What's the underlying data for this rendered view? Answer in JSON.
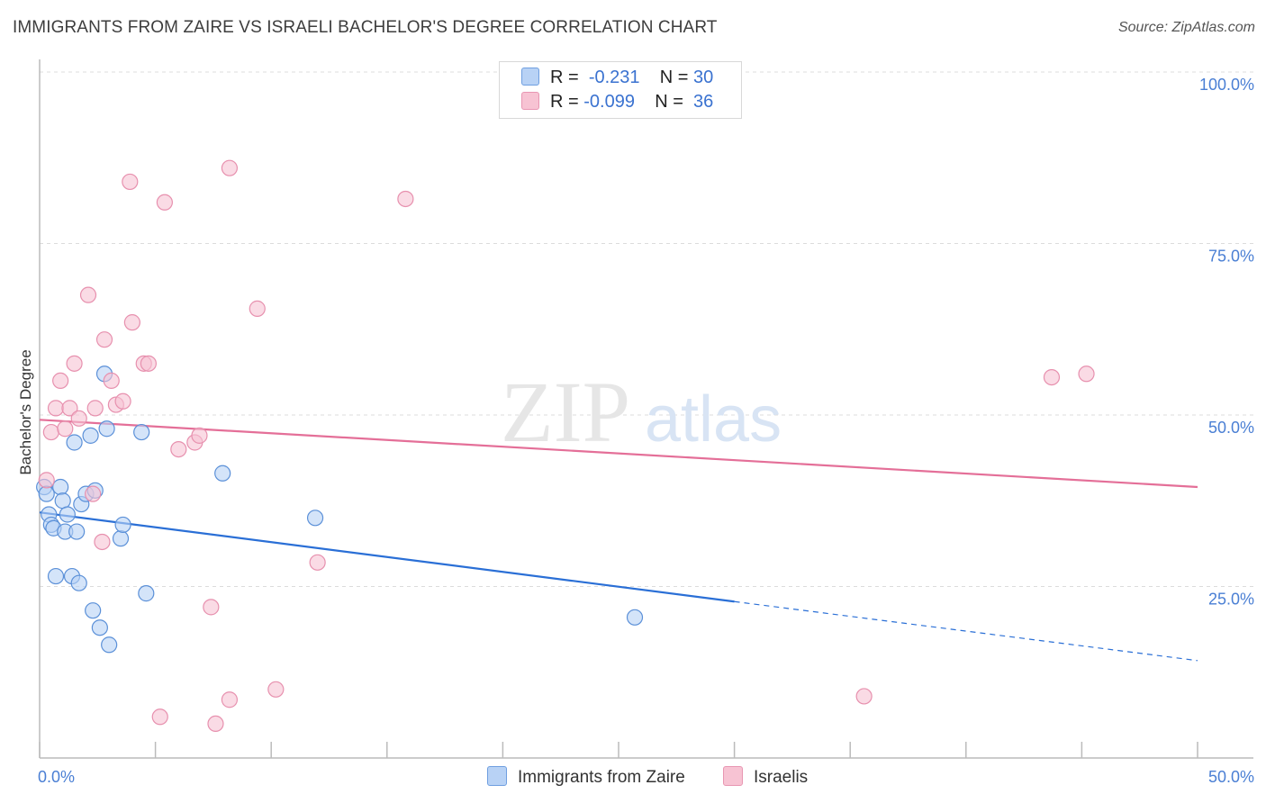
{
  "title": "IMMIGRANTS FROM ZAIRE VS ISRAELI BACHELOR'S DEGREE CORRELATION CHART",
  "source": "Source: ZipAtlas.com",
  "watermark": {
    "zip": "ZIP",
    "atlas": "atlas"
  },
  "legend": {
    "series1": {
      "r_label": "R =",
      "r_value": "-0.231",
      "n_label": "N =",
      "n_value": "30"
    },
    "series2": {
      "r_label": "R =",
      "r_value": "-0.099",
      "n_label": "N =",
      "n_value": "36"
    }
  },
  "bottom_legend": {
    "series1": "Immigrants from Zaire",
    "series2": "Israelis"
  },
  "colors": {
    "blue_fill": "#b8d2f5",
    "blue_stroke": "#5b90d8",
    "blue_line": "#2a6fd6",
    "pink_fill": "#f7c3d3",
    "pink_stroke": "#e790ae",
    "pink_line": "#e46f98",
    "grid": "#dcdcdc",
    "axis_text": "#4a7fd4"
  },
  "chart_data": {
    "type": "scatter",
    "title": "IMMIGRANTS FROM ZAIRE VS ISRAELI BACHELOR'S DEGREE CORRELATION CHART",
    "xlabel": "",
    "ylabel": "Bachelor's Degree",
    "xlim": [
      0,
      50
    ],
    "ylim": [
      0,
      100
    ],
    "x_tick_labels": [
      "0.0%",
      "50.0%"
    ],
    "y_tick_values": [
      25,
      50,
      75,
      100
    ],
    "y_tick_labels": [
      "25.0%",
      "50.0%",
      "75.0%",
      "100.0%"
    ],
    "series": [
      {
        "name": "Immigrants from Zaire",
        "color": "blue",
        "points": [
          [
            0.2,
            39.5
          ],
          [
            0.3,
            38.5
          ],
          [
            0.4,
            35.5
          ],
          [
            0.5,
            34
          ],
          [
            0.6,
            33.5
          ],
          [
            0.7,
            26.5
          ],
          [
            0.9,
            39.5
          ],
          [
            1.0,
            37.5
          ],
          [
            1.1,
            33
          ],
          [
            1.2,
            35.5
          ],
          [
            1.4,
            26.5
          ],
          [
            1.5,
            46
          ],
          [
            1.6,
            33
          ],
          [
            1.7,
            25.5
          ],
          [
            1.8,
            37
          ],
          [
            2.0,
            38.5
          ],
          [
            2.2,
            47
          ],
          [
            2.3,
            21.5
          ],
          [
            2.4,
            39
          ],
          [
            2.6,
            19
          ],
          [
            2.8,
            56
          ],
          [
            2.9,
            48
          ],
          [
            3.0,
            16.5
          ],
          [
            3.5,
            32
          ],
          [
            3.6,
            34
          ],
          [
            4.4,
            47.5
          ],
          [
            4.6,
            24
          ],
          [
            7.9,
            41.5
          ],
          [
            11.9,
            35
          ],
          [
            25.7,
            20.5
          ]
        ],
        "trend": {
          "x": [
            0,
            30
          ],
          "y": [
            35.8,
            22.8
          ],
          "dashed_to": [
            50,
            14.2
          ]
        }
      },
      {
        "name": "Israelis",
        "color": "pink",
        "points": [
          [
            0.3,
            40.5
          ],
          [
            0.5,
            47.5
          ],
          [
            0.7,
            51
          ],
          [
            0.9,
            55
          ],
          [
            1.1,
            48
          ],
          [
            1.3,
            51
          ],
          [
            1.5,
            57.5
          ],
          [
            1.7,
            49.5
          ],
          [
            2.1,
            67.5
          ],
          [
            2.3,
            38.5
          ],
          [
            2.4,
            51
          ],
          [
            2.7,
            31.5
          ],
          [
            2.8,
            61
          ],
          [
            3.1,
            55
          ],
          [
            3.3,
            51.5
          ],
          [
            3.6,
            52
          ],
          [
            3.9,
            84
          ],
          [
            4.0,
            63.5
          ],
          [
            4.5,
            57.5
          ],
          [
            4.7,
            57.5
          ],
          [
            5.2,
            6
          ],
          [
            5.4,
            81
          ],
          [
            6.0,
            45
          ],
          [
            6.7,
            46
          ],
          [
            6.9,
            47
          ],
          [
            7.4,
            22
          ],
          [
            7.6,
            5
          ],
          [
            8.2,
            86
          ],
          [
            8.2,
            8.5
          ],
          [
            9.4,
            65.5
          ],
          [
            10.2,
            10
          ],
          [
            12.0,
            28.5
          ],
          [
            15.8,
            81.5
          ],
          [
            35.6,
            9
          ],
          [
            43.7,
            55.5
          ],
          [
            45.2,
            56
          ]
        ],
        "trend": {
          "x": [
            0,
            50
          ],
          "y": [
            49.3,
            39.5
          ]
        }
      }
    ]
  }
}
